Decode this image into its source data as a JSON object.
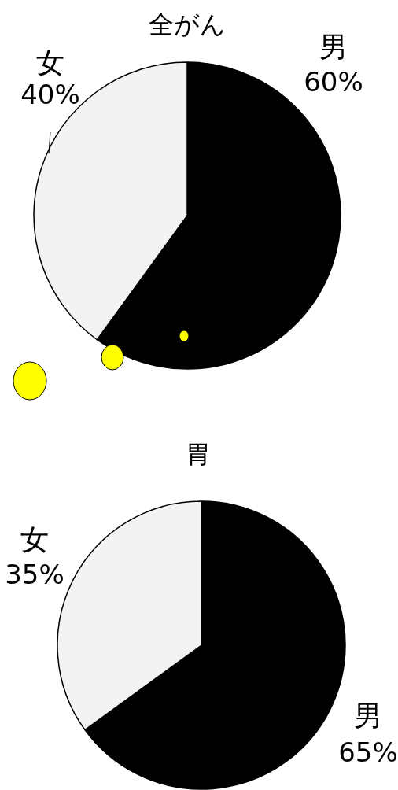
{
  "chart_data": [
    {
      "type": "pie",
      "title": "全がん",
      "categories": [
        "男",
        "女"
      ],
      "values": [
        60,
        40
      ],
      "colors": [
        "#000000",
        "#f3f3f3"
      ],
      "value_labels": [
        "60%",
        "40%"
      ]
    },
    {
      "type": "pie",
      "title": "胃",
      "categories": [
        "男",
        "女"
      ],
      "values": [
        65,
        35
      ],
      "colors": [
        "#000000",
        "#f3f3f3"
      ],
      "value_labels": [
        "65%",
        "35%"
      ]
    }
  ]
}
